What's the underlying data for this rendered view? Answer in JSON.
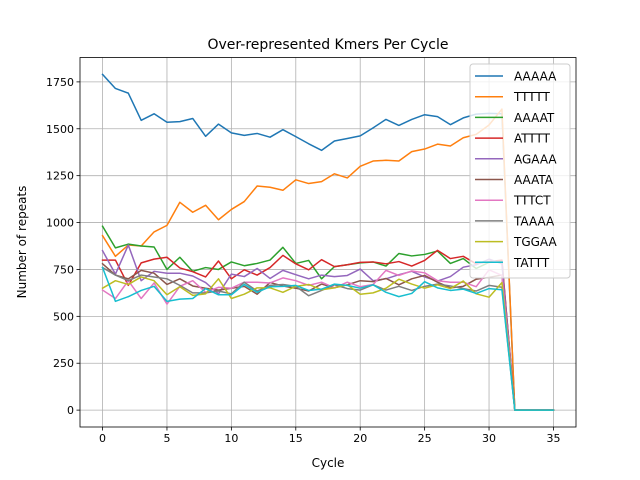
{
  "chart_data": {
    "type": "line",
    "title": "Over-represented Kmers Per Cycle",
    "xlabel": "Cycle",
    "ylabel": "Number of repeats",
    "xlim": [
      -1.75,
      36.75
    ],
    "ylim": [
      -90,
      1880
    ],
    "xticks": [
      0,
      5,
      10,
      15,
      20,
      25,
      30,
      35
    ],
    "xtick_labels": [
      "0",
      "5",
      "10",
      "15",
      "20",
      "25",
      "30",
      "35"
    ],
    "yticks": [
      0,
      250,
      500,
      750,
      1000,
      1250,
      1500,
      1750
    ],
    "ytick_labels": [
      "0",
      "250",
      "500",
      "750",
      "1000",
      "1250",
      "1500",
      "1750"
    ],
    "grid": true,
    "legend_position": "top-right",
    "x": [
      0,
      1,
      2,
      3,
      4,
      5,
      6,
      7,
      8,
      9,
      10,
      11,
      12,
      13,
      14,
      15,
      16,
      17,
      18,
      19,
      20,
      21,
      22,
      23,
      24,
      25,
      26,
      27,
      28,
      29,
      30,
      31,
      32,
      33,
      34,
      35
    ],
    "series": [
      {
        "name": "AAAAA",
        "color": "#1f77b4",
        "values": [
          1790,
          1715,
          1690,
          1545,
          1580,
          1535,
          1538,
          1555,
          1460,
          1525,
          1478,
          1465,
          1475,
          1455,
          1495,
          1458,
          1420,
          1385,
          1435,
          1448,
          1462,
          1505,
          1550,
          1518,
          1550,
          1575,
          1565,
          1522,
          1558,
          1578,
          1582,
          1580,
          0,
          0,
          0,
          0
        ]
      },
      {
        "name": "TTTTT",
        "color": "#ff7f0e",
        "values": [
          930,
          820,
          880,
          875,
          950,
          985,
          1108,
          1055,
          1092,
          1015,
          1070,
          1112,
          1195,
          1188,
          1172,
          1228,
          1208,
          1218,
          1260,
          1238,
          1300,
          1328,
          1332,
          1328,
          1378,
          1392,
          1418,
          1408,
          1452,
          1470,
          1520,
          1605,
          0,
          0,
          0,
          0
        ]
      },
      {
        "name": "AAAAT",
        "color": "#2ca02c",
        "values": [
          980,
          865,
          885,
          875,
          870,
          750,
          815,
          740,
          760,
          750,
          790,
          770,
          782,
          800,
          868,
          782,
          798,
          700,
          765,
          775,
          785,
          790,
          768,
          835,
          822,
          830,
          848,
          782,
          808,
          755,
          788,
          792,
          0,
          0,
          0,
          0
        ]
      },
      {
        "name": "ATTTT",
        "color": "#d62728",
        "values": [
          800,
          800,
          665,
          785,
          805,
          815,
          758,
          738,
          710,
          795,
          700,
          748,
          720,
          760,
          825,
          780,
          748,
          802,
          765,
          775,
          788,
          790,
          780,
          792,
          768,
          798,
          852,
          808,
          820,
          780,
          792,
          800,
          0,
          0,
          0,
          0
        ]
      },
      {
        "name": "AGAAA",
        "color": "#9467bd",
        "values": [
          850,
          725,
          880,
          690,
          740,
          730,
          730,
          715,
          680,
          620,
          725,
          712,
          755,
          702,
          745,
          722,
          700,
          720,
          712,
          718,
          752,
          690,
          700,
          722,
          740,
          710,
          688,
          712,
          762,
          775,
          805,
          780,
          0,
          0,
          0,
          0
        ]
      },
      {
        "name": "AAATA",
        "color": "#8c564b",
        "values": [
          780,
          720,
          700,
          745,
          730,
          670,
          700,
          662,
          650,
          640,
          650,
          660,
          618,
          680,
          662,
          650,
          635,
          672,
          652,
          668,
          690,
          685,
          702,
          668,
          700,
          718,
          682,
          652,
          660,
          698,
          708,
          720,
          0,
          0,
          0,
          0
        ]
      },
      {
        "name": "TTTCT",
        "color": "#e377c2",
        "values": [
          640,
          595,
          690,
          595,
          678,
          565,
          660,
          690,
          628,
          655,
          650,
          682,
          682,
          678,
          705,
          690,
          665,
          682,
          652,
          682,
          658,
          670,
          745,
          718,
          742,
          732,
          690,
          682,
          682,
          658,
          748,
          718,
          0,
          0,
          0,
          0
        ]
      },
      {
        "name": "TAAAA",
        "color": "#7f7f7f",
        "values": [
          760,
          720,
          690,
          720,
          710,
          700,
          665,
          625,
          625,
          635,
          620,
          682,
          635,
          665,
          670,
          660,
          610,
          638,
          668,
          648,
          640,
          668,
          640,
          660,
          638,
          660,
          672,
          662,
          648,
          635,
          665,
          655,
          0,
          0,
          0,
          0
        ]
      },
      {
        "name": "TGGAA",
        "color": "#bcbd22",
        "values": [
          650,
          690,
          670,
          710,
          690,
          615,
          658,
          612,
          620,
          700,
          595,
          618,
          652,
          652,
          628,
          660,
          670,
          642,
          652,
          668,
          618,
          625,
          650,
          698,
          672,
          650,
          668,
          648,
          688,
          620,
          602,
          680,
          0,
          0,
          0,
          0
        ]
      },
      {
        "name": "TATTT",
        "color": "#17becf",
        "values": [
          760,
          580,
          605,
          638,
          660,
          580,
          592,
          595,
          648,
          615,
          615,
          670,
          628,
          658,
          660,
          665,
          638,
          645,
          672,
          665,
          650,
          668,
          628,
          605,
          622,
          685,
          652,
          638,
          645,
          622,
          648,
          642,
          0,
          0,
          0,
          0
        ]
      }
    ]
  }
}
